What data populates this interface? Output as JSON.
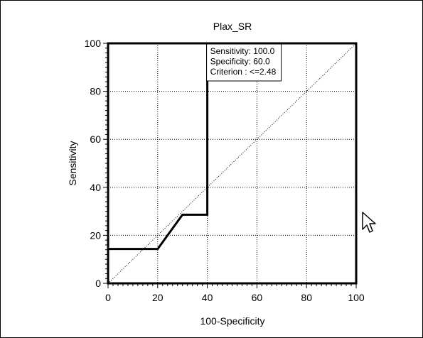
{
  "chart_data": {
    "type": "line",
    "title": "Plax_SR",
    "xlabel": "100-Specificity",
    "ylabel": "Sensitivity",
    "xlim": [
      0,
      100
    ],
    "ylim": [
      0,
      100
    ],
    "xticks": [
      "0",
      "20",
      "40",
      "60",
      "80",
      "100"
    ],
    "yticks": [
      "0",
      "20",
      "40",
      "60",
      "80",
      "100"
    ],
    "grid": true,
    "series": [
      {
        "style": "solid",
        "color": "#000000",
        "x": [
          0,
          0,
          20,
          30,
          40,
          40,
          100
        ],
        "y": [
          0,
          14.3,
          14.3,
          28.6,
          28.6,
          100,
          100
        ]
      },
      {
        "style": "dotted",
        "color": "#000000",
        "x": [
          0,
          100
        ],
        "y": [
          0,
          100
        ]
      }
    ],
    "annotation": {
      "lines": [
        "Sensitivity: 100.0",
        "Specificity: 60.0",
        "Criterion : <=2.48"
      ],
      "anchor": [
        40,
        100
      ]
    }
  },
  "icons": {
    "cursor": "mouse-pointer-icon"
  }
}
